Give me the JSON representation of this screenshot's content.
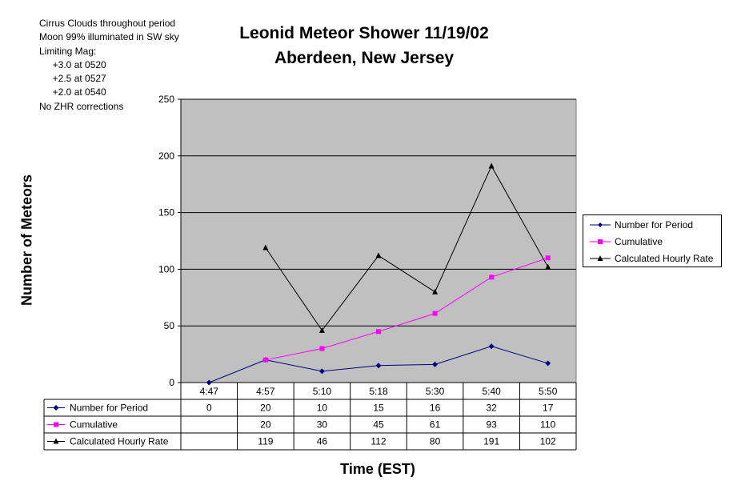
{
  "notes": [
    "Cirrus Clouds throughout period",
    "Moon 99% illuminated in SW sky",
    "Limiting Mag:",
    "     +3.0 at 0520",
    "     +2.5 at 0527",
    "     +2.0 at 0540",
    "No ZHR corrections"
  ],
  "chart_data": {
    "type": "line",
    "title": "Leonid Meteor Shower 11/19/02",
    "subtitle": "Aberdeen, New Jersey",
    "xlabel": "Time (EST)",
    "ylabel": "Number of Meteors",
    "categories": [
      "4:47",
      "4:57",
      "5:10",
      "5:18",
      "5:30",
      "5:40",
      "5:50"
    ],
    "ylim": [
      0,
      250
    ],
    "yticks": [
      0,
      50,
      100,
      150,
      200,
      250
    ],
    "grid": true,
    "legend_position": "right",
    "series": [
      {
        "name": "Number for Period",
        "values": [
          0,
          20,
          10,
          15,
          16,
          32,
          17
        ],
        "color": "#000080",
        "marker": "diamond"
      },
      {
        "name": "Cumulative",
        "values": [
          null,
          20,
          30,
          45,
          61,
          93,
          110
        ],
        "color": "#ff00ff",
        "marker": "square"
      },
      {
        "name": "Calculated Hourly Rate",
        "values": [
          null,
          119,
          46,
          112,
          80,
          191,
          102
        ],
        "color": "#000000",
        "marker": "triangle"
      }
    ],
    "plot_background": "#c0c0c0",
    "data_table": true
  }
}
